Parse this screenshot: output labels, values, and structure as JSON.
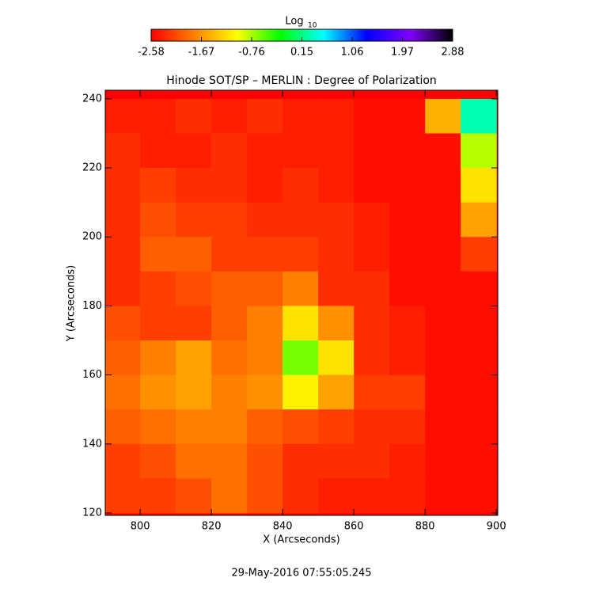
{
  "chart_data": {
    "type": "heatmap",
    "title": "Hinode SOT/SP – MERLIN : Degree of Polarization",
    "x_label": "X (Arcseconds)",
    "y_label": "Y (Arcseconds)",
    "footer": "29-May-2016 07:55:05.245",
    "colorbar_label": "Log",
    "colorbar_label_sub": "10",
    "colorbar_lim": [
      -2.58,
      2.88
    ],
    "colorbar_ticks": [
      -2.58,
      -1.67,
      -0.76,
      0.15,
      1.06,
      1.97,
      2.88
    ],
    "colorscale": [
      "#ff0000",
      "#ff8000",
      "#ffff00",
      "#00ff00",
      "#00ffff",
      "#0000ff",
      "#8000ff",
      "#000000"
    ],
    "xlim": [
      790.2,
      900.4
    ],
    "ylim": [
      119.3,
      242.5
    ],
    "xticks": [
      800,
      820,
      840,
      860,
      880,
      900
    ],
    "yticks": [
      120,
      140,
      160,
      180,
      200,
      220,
      240
    ],
    "x": [
      795,
      805,
      815,
      825,
      835,
      845,
      855,
      865,
      875,
      885,
      895
    ],
    "y": [
      235,
      225,
      215,
      205,
      195,
      185,
      175,
      165,
      155,
      145,
      135,
      125
    ],
    "z": [
      [
        -2.4,
        -2.4,
        -2.3,
        -2.4,
        -2.3,
        -2.4,
        -2.4,
        -2.5,
        -2.5,
        -1.5,
        0.3
      ],
      [
        -2.3,
        -2.4,
        -2.4,
        -2.3,
        -2.4,
        -2.4,
        -2.4,
        -2.5,
        -2.5,
        -2.5,
        -0.8
      ],
      [
        -2.3,
        -2.2,
        -2.3,
        -2.3,
        -2.4,
        -2.3,
        -2.4,
        -2.5,
        -2.5,
        -2.5,
        -1.2
      ],
      [
        -2.3,
        -2.1,
        -2.2,
        -2.2,
        -2.3,
        -2.3,
        -2.3,
        -2.4,
        -2.5,
        -2.5,
        -1.6
      ],
      [
        -2.3,
        -2.0,
        -2.0,
        -2.2,
        -2.2,
        -2.2,
        -2.3,
        -2.4,
        -2.5,
        -2.5,
        -2.2
      ],
      [
        -2.3,
        -2.2,
        -2.1,
        -2.0,
        -2.0,
        -1.8,
        -2.3,
        -2.3,
        -2.5,
        -2.5,
        -2.5
      ],
      [
        -2.1,
        -2.2,
        -2.2,
        -2.0,
        -1.8,
        -1.2,
        -1.7,
        -2.3,
        -2.4,
        -2.5,
        -2.5
      ],
      [
        -2.0,
        -1.8,
        -1.6,
        -1.9,
        -1.8,
        -0.6,
        -1.2,
        -2.3,
        -2.4,
        -2.5,
        -2.5
      ],
      [
        -1.9,
        -1.7,
        -1.6,
        -1.8,
        -1.7,
        -1.1,
        -1.6,
        -2.2,
        -2.2,
        -2.5,
        -2.5
      ],
      [
        -2.0,
        -1.9,
        -1.8,
        -1.8,
        -2.0,
        -2.1,
        -2.2,
        -2.3,
        -2.3,
        -2.5,
        -2.5
      ],
      [
        -2.2,
        -2.1,
        -1.9,
        -1.9,
        -2.1,
        -2.3,
        -2.3,
        -2.3,
        -2.4,
        -2.5,
        -2.5
      ],
      [
        -2.2,
        -2.2,
        -2.1,
        -1.9,
        -2.1,
        -2.3,
        -2.4,
        -2.4,
        -2.4,
        -2.5,
        -2.5
      ]
    ]
  }
}
